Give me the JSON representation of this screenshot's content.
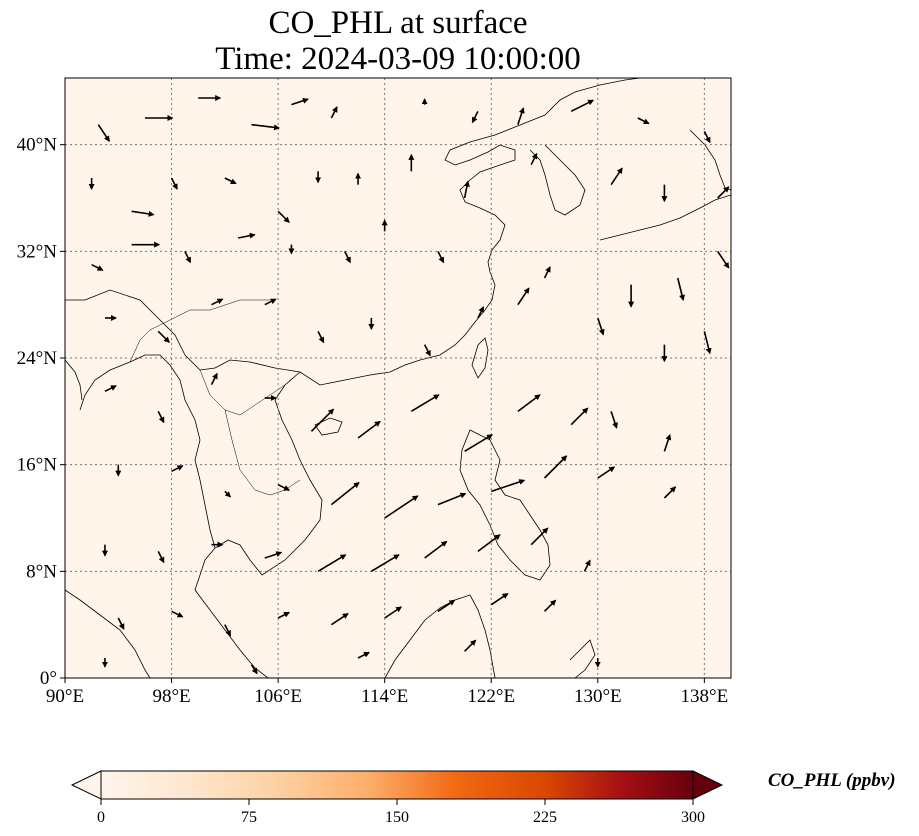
{
  "title_line1": "CO_PHL at surface",
  "title_line2": "Time: 2024-03-09 10:00:00",
  "map": {
    "projection": "PlateCarree",
    "lon_range": [
      90,
      140
    ],
    "lat_range": [
      0,
      45
    ],
    "gridlines": "dotted",
    "lon_ticks": [
      {
        "value": 90,
        "label": "90°E"
      },
      {
        "value": 98,
        "label": "98°E"
      },
      {
        "value": 106,
        "label": "106°E"
      },
      {
        "value": 114,
        "label": "114°E"
      },
      {
        "value": 122,
        "label": "122°E"
      },
      {
        "value": 130,
        "label": "130°E"
      },
      {
        "value": 138,
        "label": "138°E"
      }
    ],
    "lat_ticks": [
      {
        "value": 0,
        "label": "0°"
      },
      {
        "value": 8,
        "label": "8°N"
      },
      {
        "value": 16,
        "label": "16°N"
      },
      {
        "value": 24,
        "label": "24°N"
      },
      {
        "value": 32,
        "label": "32°N"
      },
      {
        "value": 40,
        "label": "40°N"
      }
    ],
    "field_color": "#fff5eb",
    "coastline_color": "#000000",
    "wind_vectors": [
      {
        "lon": 92.5,
        "lat": 41.5,
        "u": 1,
        "v": -1.5
      },
      {
        "lon": 96,
        "lat": 42,
        "u": 2.5,
        "v": 0
      },
      {
        "lon": 100,
        "lat": 43.5,
        "u": 2,
        "v": 0
      },
      {
        "lon": 104,
        "lat": 41.5,
        "u": 2.5,
        "v": -0.3
      },
      {
        "lon": 107,
        "lat": 43,
        "u": 1.5,
        "v": 0.5
      },
      {
        "lon": 110,
        "lat": 42,
        "u": 0.5,
        "v": 1
      },
      {
        "lon": 117,
        "lat": 43,
        "u": 0,
        "v": 0.5
      },
      {
        "lon": 121,
        "lat": 42.5,
        "u": -0.5,
        "v": -1
      },
      {
        "lon": 124,
        "lat": 41.5,
        "u": 0.5,
        "v": 1.5
      },
      {
        "lon": 128,
        "lat": 42.5,
        "u": 2,
        "v": 1
      },
      {
        "lon": 133,
        "lat": 42,
        "u": 1,
        "v": -0.5
      },
      {
        "lon": 138,
        "lat": 41,
        "u": 0.5,
        "v": -1
      },
      {
        "lon": 92,
        "lat": 37.5,
        "u": 0,
        "v": -1
      },
      {
        "lon": 95,
        "lat": 35,
        "u": 2,
        "v": -0.3
      },
      {
        "lon": 98,
        "lat": 37.5,
        "u": 0.5,
        "v": -1
      },
      {
        "lon": 102,
        "lat": 37.5,
        "u": 1,
        "v": -0.5
      },
      {
        "lon": 106,
        "lat": 35,
        "u": 1,
        "v": -1
      },
      {
        "lon": 109,
        "lat": 38,
        "u": 0,
        "v": -1
      },
      {
        "lon": 112,
        "lat": 37,
        "u": 0,
        "v": 1
      },
      {
        "lon": 116,
        "lat": 38,
        "u": 0,
        "v": 1.5
      },
      {
        "lon": 120,
        "lat": 36,
        "u": 0.3,
        "v": 1.5
      },
      {
        "lon": 125,
        "lat": 38.5,
        "u": 0.5,
        "v": 1
      },
      {
        "lon": 131,
        "lat": 37,
        "u": 1,
        "v": 1.5
      },
      {
        "lon": 135,
        "lat": 37,
        "u": 0,
        "v": -1.5
      },
      {
        "lon": 139,
        "lat": 36,
        "u": 1,
        "v": 1
      },
      {
        "lon": 92,
        "lat": 31,
        "u": 1,
        "v": -0.5
      },
      {
        "lon": 95,
        "lat": 32.5,
        "u": 2.5,
        "v": 0
      },
      {
        "lon": 99,
        "lat": 32,
        "u": 0.5,
        "v": -1
      },
      {
        "lon": 103,
        "lat": 33,
        "u": 1.5,
        "v": 0.3
      },
      {
        "lon": 107,
        "lat": 32.5,
        "u": 0,
        "v": -0.8
      },
      {
        "lon": 111,
        "lat": 32,
        "u": 0.5,
        "v": -1
      },
      {
        "lon": 114,
        "lat": 33.5,
        "u": 0,
        "v": 1
      },
      {
        "lon": 118,
        "lat": 32,
        "u": 0.5,
        "v": -1
      },
      {
        "lon": 126,
        "lat": 30,
        "u": 0.5,
        "v": 1
      },
      {
        "lon": 132.5,
        "lat": 29.5,
        "u": 0,
        "v": -2
      },
      {
        "lon": 136,
        "lat": 30,
        "u": 0.5,
        "v": -2
      },
      {
        "lon": 139,
        "lat": 32,
        "u": 1,
        "v": -1.5
      },
      {
        "lon": 93,
        "lat": 27,
        "u": 1,
        "v": 0
      },
      {
        "lon": 97,
        "lat": 26,
        "u": 1,
        "v": -1
      },
      {
        "lon": 101,
        "lat": 28,
        "u": 1,
        "v": 0.5
      },
      {
        "lon": 105,
        "lat": 28,
        "u": 1,
        "v": 0.5
      },
      {
        "lon": 109,
        "lat": 26,
        "u": 0.5,
        "v": -1
      },
      {
        "lon": 113,
        "lat": 27,
        "u": 0,
        "v": -1
      },
      {
        "lon": 117,
        "lat": 25,
        "u": 0.5,
        "v": -1
      },
      {
        "lon": 121,
        "lat": 27,
        "u": 0.5,
        "v": 1
      },
      {
        "lon": 124,
        "lat": 28,
        "u": 1,
        "v": 1.5
      },
      {
        "lon": 130,
        "lat": 27,
        "u": 0.5,
        "v": -1.5
      },
      {
        "lon": 135,
        "lat": 25,
        "u": 0,
        "v": -1.5
      },
      {
        "lon": 138,
        "lat": 26,
        "u": 0.5,
        "v": -2
      },
      {
        "lon": 93,
        "lat": 21.5,
        "u": 1,
        "v": 0.5
      },
      {
        "lon": 97,
        "lat": 20,
        "u": 0.5,
        "v": -1
      },
      {
        "lon": 101,
        "lat": 22,
        "u": 0.5,
        "v": 1
      },
      {
        "lon": 105,
        "lat": 21,
        "u": 1,
        "v": 0
      },
      {
        "lon": 108.5,
        "lat": 18.5,
        "u": 2,
        "v": 2
      },
      {
        "lon": 112,
        "lat": 18,
        "u": 2,
        "v": 1.5
      },
      {
        "lon": 116,
        "lat": 20,
        "u": 2.5,
        "v": 1.5
      },
      {
        "lon": 120,
        "lat": 17,
        "u": 2.5,
        "v": 1.5
      },
      {
        "lon": 124,
        "lat": 20,
        "u": 2,
        "v": 1.5
      },
      {
        "lon": 128,
        "lat": 19,
        "u": 1.5,
        "v": 1.5
      },
      {
        "lon": 131,
        "lat": 20,
        "u": 0.5,
        "v": -1.5
      },
      {
        "lon": 135,
        "lat": 17,
        "u": 0.5,
        "v": 1.5
      },
      {
        "lon": 94,
        "lat": 16,
        "u": 0,
        "v": -1
      },
      {
        "lon": 98,
        "lat": 15.5,
        "u": 1,
        "v": 0.5
      },
      {
        "lon": 102,
        "lat": 14,
        "u": 0.5,
        "v": -0.5
      },
      {
        "lon": 106,
        "lat": 14.5,
        "u": 1,
        "v": -0.5
      },
      {
        "lon": 110,
        "lat": 13,
        "u": 2.5,
        "v": 2
      },
      {
        "lon": 114,
        "lat": 12,
        "u": 3,
        "v": 2
      },
      {
        "lon": 118,
        "lat": 13,
        "u": 2.5,
        "v": 1
      },
      {
        "lon": 122,
        "lat": 14,
        "u": 3,
        "v": 1
      },
      {
        "lon": 126,
        "lat": 15,
        "u": 2,
        "v": 2
      },
      {
        "lon": 130,
        "lat": 15,
        "u": 1.5,
        "v": 1
      },
      {
        "lon": 135,
        "lat": 13.5,
        "u": 1,
        "v": 1
      },
      {
        "lon": 93,
        "lat": 10,
        "u": 0,
        "v": -1
      },
      {
        "lon": 97,
        "lat": 9.5,
        "u": 0.5,
        "v": -1
      },
      {
        "lon": 101,
        "lat": 10,
        "u": 1,
        "v": 0
      },
      {
        "lon": 105,
        "lat": 9,
        "u": 1.5,
        "v": 0.5
      },
      {
        "lon": 109,
        "lat": 8,
        "u": 2.5,
        "v": 1.5
      },
      {
        "lon": 113,
        "lat": 8,
        "u": 2.5,
        "v": 1.5
      },
      {
        "lon": 117,
        "lat": 9,
        "u": 2,
        "v": 1.5
      },
      {
        "lon": 121,
        "lat": 9.5,
        "u": 2,
        "v": 1.5
      },
      {
        "lon": 125,
        "lat": 10,
        "u": 1.5,
        "v": 1.5
      },
      {
        "lon": 129,
        "lat": 8,
        "u": 0.5,
        "v": 1
      },
      {
        "lon": 94,
        "lat": 4.5,
        "u": 0.5,
        "v": -1
      },
      {
        "lon": 98,
        "lat": 5,
        "u": 1,
        "v": -0.5
      },
      {
        "lon": 102,
        "lat": 4,
        "u": 0.5,
        "v": -1
      },
      {
        "lon": 106,
        "lat": 4.5,
        "u": 1,
        "v": 0.5
      },
      {
        "lon": 110,
        "lat": 4,
        "u": 1.5,
        "v": 1
      },
      {
        "lon": 114,
        "lat": 4.5,
        "u": 1.5,
        "v": 1
      },
      {
        "lon": 118,
        "lat": 5,
        "u": 1.5,
        "v": 1
      },
      {
        "lon": 122,
        "lat": 5.5,
        "u": 1.5,
        "v": 1
      },
      {
        "lon": 126,
        "lat": 5,
        "u": 1,
        "v": 1
      },
      {
        "lon": 93,
        "lat": 1.5,
        "u": 0,
        "v": -0.8
      },
      {
        "lon": 104,
        "lat": 1,
        "u": 0.5,
        "v": -0.8
      },
      {
        "lon": 112,
        "lat": 1.5,
        "u": 1,
        "v": 0.5
      },
      {
        "lon": 120,
        "lat": 2,
        "u": 1,
        "v": 1
      },
      {
        "lon": 130,
        "lat": 1.5,
        "u": 0,
        "v": -0.8
      }
    ]
  },
  "colorbar": {
    "label": "CO_PHL (ppbv)",
    "min": 0,
    "max": 300,
    "extend": "both",
    "colormap": [
      "#fff5eb",
      "#fee6ce",
      "#fdd0a2",
      "#fdae6b",
      "#f16913",
      "#d94801",
      "#a50f15",
      "#67000d"
    ],
    "ticks": [
      {
        "value": 0,
        "label": "0"
      },
      {
        "value": 75,
        "label": "75"
      },
      {
        "value": 150,
        "label": "150"
      },
      {
        "value": 225,
        "label": "225"
      },
      {
        "value": 300,
        "label": "300"
      }
    ]
  }
}
